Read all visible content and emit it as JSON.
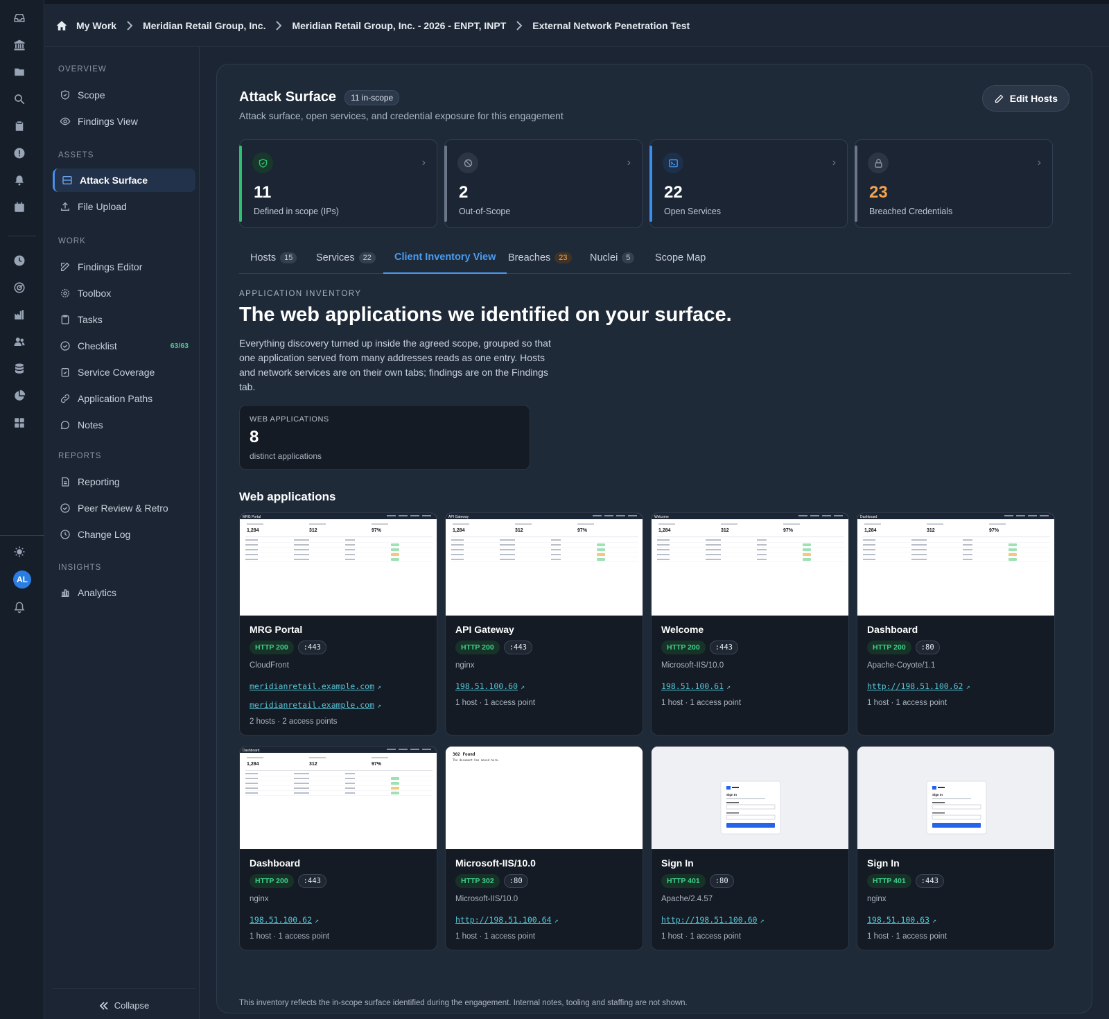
{
  "breadcrumb": [
    "My Work",
    "Meridian Retail Group, Inc.",
    "Meridian Retail Group, Inc. - 2026 - ENPT, INPT",
    "External Network Penetration Test"
  ],
  "user": {
    "initials": "AL"
  },
  "nav": {
    "sections": {
      "overview": "OVERVIEW",
      "assets": "ASSETS",
      "work": "WORK",
      "reports": "REPORTS",
      "insights": "INSIGHTS"
    },
    "items": {
      "scope": "Scope",
      "findings_view": "Findings View",
      "attack_surface": "Attack Surface",
      "file_upload": "File Upload",
      "findings_editor": "Findings Editor",
      "toolbox": "Toolbox",
      "tasks": "Tasks",
      "checklist": "Checklist",
      "checklist_count": "63/63",
      "service_coverage": "Service Coverage",
      "application_paths": "Application Paths",
      "notes": "Notes",
      "reporting": "Reporting",
      "peer_review": "Peer Review & Retro",
      "change_log": "Change Log",
      "analytics": "Analytics"
    },
    "collapse": "Collapse"
  },
  "header": {
    "title": "Attack Surface",
    "badge": "11 in-scope",
    "subtitle": "Attack surface, open services, and credential exposure for this engagement",
    "edit_button": "Edit Hosts"
  },
  "stats": [
    {
      "value": "11",
      "label": "Defined in scope (IPs)",
      "accent": "#2fbf71",
      "icon": "shield-check-icon"
    },
    {
      "value": "2",
      "label": "Out-of-Scope",
      "accent": "#6b7789",
      "icon": "ban-icon"
    },
    {
      "value": "22",
      "label": "Open Services",
      "accent": "#3b8df0",
      "icon": "terminal-icon"
    },
    {
      "value": "23",
      "label": "Breached Credentials",
      "accent": "#6b7789",
      "icon": "lock-icon"
    }
  ],
  "tabs": [
    {
      "label": "Hosts",
      "count": "15"
    },
    {
      "label": "Services",
      "count": "22"
    },
    {
      "label": "Client Inventory View",
      "count": ""
    },
    {
      "label": "Breaches",
      "count": "23"
    },
    {
      "label": "Nuclei",
      "count": "5"
    },
    {
      "label": "Scope Map",
      "count": ""
    }
  ],
  "inventory": {
    "eyebrow": "APPLICATION INVENTORY",
    "headline": "The web applications we identified on your surface.",
    "description": "Everything discovery turned up inside the agreed scope, grouped so that one application served from many addresses reads as one entry. Hosts and network services are on their own tabs; findings are on the Findings tab.",
    "web_apps_label": "WEB APPLICATIONS",
    "web_apps_count": "8",
    "web_apps_sub": "distinct applications",
    "section_title": "Web applications",
    "footnote": "This inventory reflects the in-scope surface identified during the engagement. Internal notes, tooling and staffing are not shown."
  },
  "apps": [
    {
      "name": "MRG Portal",
      "status": "HTTP 200",
      "port": ":443",
      "server": "CloudFront",
      "links": [
        "meridianretail.example.com",
        "meridianretail.example.com"
      ],
      "meta": "2 hosts · 2 access points",
      "shot_title": "MRG Portal"
    },
    {
      "name": "API Gateway",
      "status": "HTTP 200",
      "port": ":443",
      "server": "nginx",
      "links": [
        "198.51.100.60"
      ],
      "meta": "1 host · 1 access point",
      "shot_title": "API Gateway"
    },
    {
      "name": "Welcome",
      "status": "HTTP 200",
      "port": ":443",
      "server": "Microsoft-IIS/10.0",
      "links": [
        "198.51.100.61"
      ],
      "meta": "1 host · 1 access point",
      "shot_title": "Welcome"
    },
    {
      "name": "Dashboard",
      "status": "HTTP 200",
      "port": ":80",
      "server": "Apache-Coyote/1.1",
      "links": [
        "http://198.51.100.62"
      ],
      "meta": "1 host · 1 access point",
      "shot_title": "Dashboard"
    },
    {
      "name": "Dashboard",
      "status": "HTTP 200",
      "port": ":443",
      "server": "nginx",
      "links": [
        "198.51.100.62"
      ],
      "meta": "1 host · 1 access point",
      "shot_title": "Dashboard"
    },
    {
      "name": "Microsoft-IIS/10.0",
      "status": "HTTP 302",
      "port": ":80",
      "server": "Microsoft-IIS/10.0",
      "links": [
        "http://198.51.100.64"
      ],
      "meta": "1 host · 1 access point",
      "shot_title": "302 Found",
      "shot_body": "The document has moved here."
    },
    {
      "name": "Sign In",
      "status": "HTTP 401",
      "port": ":80",
      "server": "Apache/2.4.57",
      "links": [
        "http://198.51.100.60"
      ],
      "meta": "1 host · 1 access point",
      "shot_title": "Sign In"
    },
    {
      "name": "Sign In",
      "status": "HTTP 401",
      "port": ":443",
      "server": "nginx",
      "links": [
        "198.51.100.63"
      ],
      "meta": "1 host · 1 access point",
      "shot_title": "Sign In"
    }
  ],
  "thumbnail": {
    "stat_values": [
      "1,284",
      "312",
      "97%"
    ]
  }
}
